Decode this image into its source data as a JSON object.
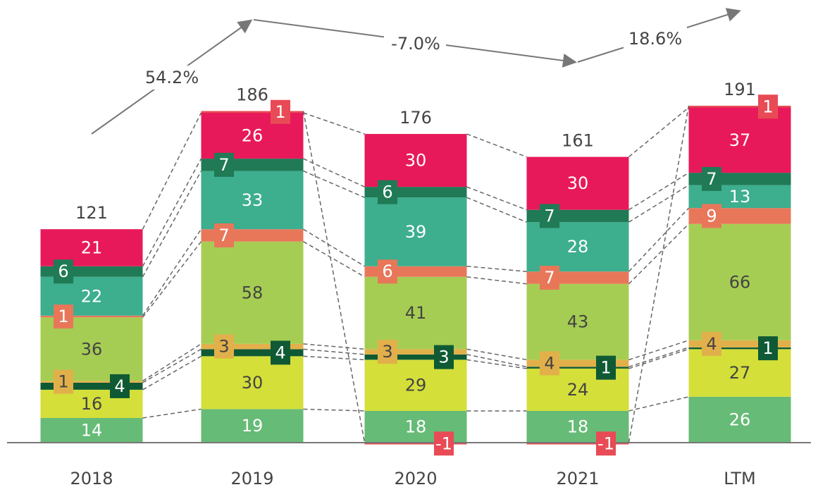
{
  "chart_data": {
    "type": "stacked_bar",
    "categories": [
      "2018",
      "2019",
      "2020",
      "2021",
      "LTM"
    ],
    "totals": [
      121,
      186,
      176,
      161,
      191
    ],
    "series": [
      {
        "color": "#66bb77",
        "values": [
          14,
          19,
          18,
          18,
          26
        ]
      },
      {
        "color": "#d4df3a",
        "values": [
          16,
          30,
          29,
          24,
          27
        ]
      },
      {
        "color": "#0f5a34",
        "values": [
          4,
          4,
          3,
          1,
          1
        ]
      },
      {
        "color": "#e2b04a",
        "values": [
          1,
          3,
          3,
          4,
          4
        ]
      },
      {
        "color": "#a6cd53",
        "values": [
          36,
          58,
          41,
          43,
          66
        ]
      },
      {
        "color": "#e8775a",
        "values": [
          1,
          7,
          6,
          7,
          9
        ]
      },
      {
        "color": "#3dae8e",
        "values": [
          22,
          33,
          39,
          28,
          13
        ]
      },
      {
        "color": "#1f7a55",
        "values": [
          6,
          7,
          6,
          7,
          7
        ]
      },
      {
        "color": "#e8195a",
        "values": [
          21,
          26,
          30,
          30,
          37
        ]
      },
      {
        "color": "#e84b55",
        "values": [
          null,
          1,
          -1,
          -1,
          1
        ]
      }
    ],
    "annotations": [
      "54.2%",
      "-7.0%",
      "18.6%"
    ]
  }
}
